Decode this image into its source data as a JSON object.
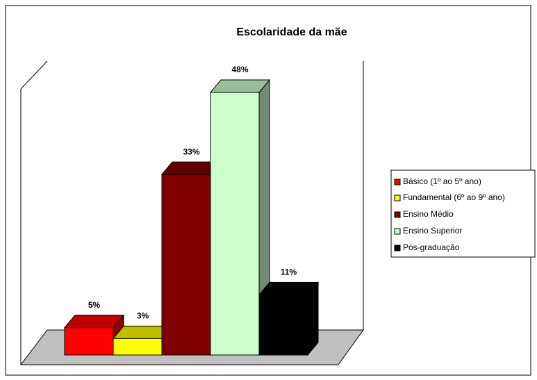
{
  "chart_data": {
    "type": "bar3d",
    "title": "Escolaridade da mãe",
    "series": [
      {
        "name": "Básico (1º ao 5º ano)",
        "color": "#ff0000",
        "values": [
          5
        ],
        "value_labels": [
          "5%"
        ]
      },
      {
        "name": "Fundamental (6º ao 9º ano)",
        "color": "#ffff00",
        "values": [
          3
        ],
        "value_labels": [
          "3%"
        ]
      },
      {
        "name": "Ensino Médio",
        "color": "#800000",
        "values": [
          33
        ],
        "value_labels": [
          "33%"
        ]
      },
      {
        "name": "Ensino Superior",
        "color": "#ccffcc",
        "values": [
          48
        ],
        "value_labels": [
          "48%"
        ]
      },
      {
        "name": "Pós-graduação",
        "color": "#000000",
        "values": [
          11
        ],
        "value_labels": [
          "11%"
        ]
      }
    ],
    "legend": "right"
  }
}
